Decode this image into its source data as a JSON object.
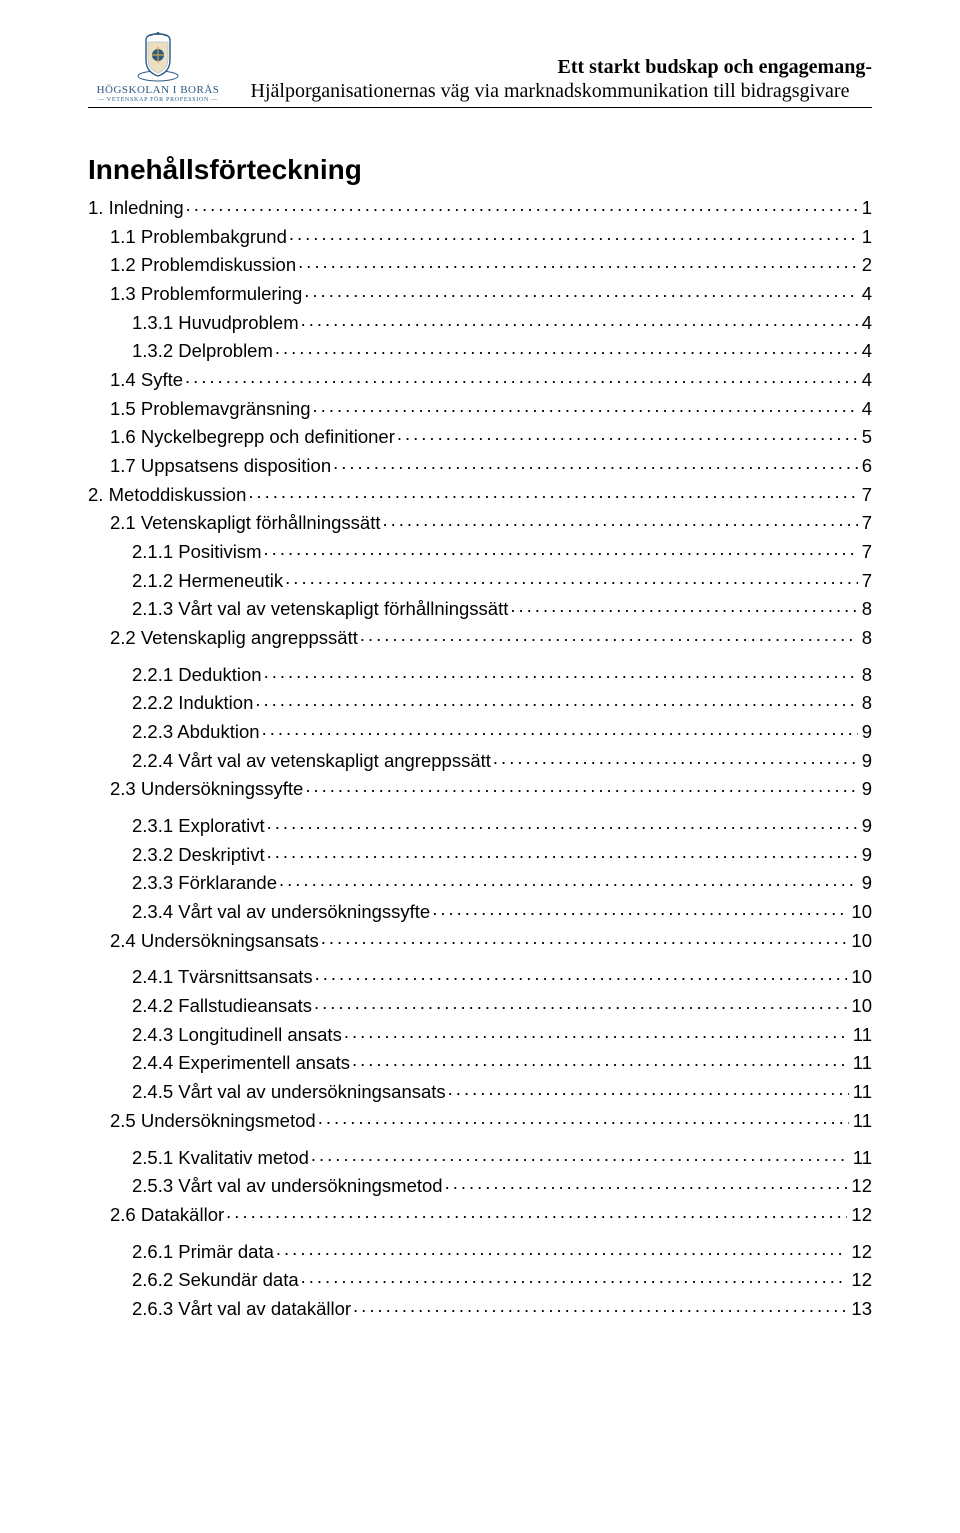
{
  "header": {
    "university_name": "HÖGSKOLAN I BORÅS",
    "university_subtitle": "— VETENSKAP FÖR PROFESSION —",
    "line1": "Ett starkt budskap och engagemang-",
    "line2": "Hjälporganisationernas väg via marknadskommunikation till bidragsgivare"
  },
  "toc_title": "Innehållsförteckning",
  "toc": [
    {
      "level": 1,
      "label": "1. Inledning",
      "page": "1",
      "space": false
    },
    {
      "level": 2,
      "label": "1.1 Problembakgrund",
      "page": "1",
      "space": false
    },
    {
      "level": 2,
      "label": "1.2 Problemdiskussion",
      "page": "2",
      "space": false
    },
    {
      "level": 2,
      "label": "1.3 Problemformulering",
      "page": "4",
      "space": false
    },
    {
      "level": 3,
      "label": "1.3.1 Huvudproblem",
      "page": "4",
      "space": false
    },
    {
      "level": 3,
      "label": "1.3.2 Delproblem",
      "page": "4",
      "space": false
    },
    {
      "level": 2,
      "label": "1.4 Syfte",
      "page": "4",
      "space": false
    },
    {
      "level": 2,
      "label": "1.5 Problemavgränsning",
      "page": "4",
      "space": false
    },
    {
      "level": 2,
      "label": "1.6 Nyckelbegrepp och definitioner",
      "page": "5",
      "space": false
    },
    {
      "level": 2,
      "label": "1.7 Uppsatsens disposition",
      "page": "6",
      "space": false
    },
    {
      "level": 1,
      "label": "2. Metoddiskussion",
      "page": "7",
      "space": false
    },
    {
      "level": 2,
      "label": "2.1 Vetenskapligt förhållningssätt",
      "page": "7",
      "space": false
    },
    {
      "level": 3,
      "label": "2.1.1 Positivism",
      "page": "7",
      "space": false
    },
    {
      "level": 3,
      "label": "2.1.2 Hermeneutik",
      "page": "7",
      "space": false
    },
    {
      "level": 3,
      "label": "2.1.3 Vårt val av vetenskapligt förhållningssätt",
      "page": "8",
      "space": false
    },
    {
      "level": 2,
      "label": "2.2 Vetenskaplig angreppssätt",
      "page": "8",
      "space": false
    },
    {
      "level": 3,
      "label": "2.2.1 Deduktion",
      "page": "8",
      "space": true
    },
    {
      "level": 3,
      "label": "2.2.2 Induktion",
      "page": "8",
      "space": false
    },
    {
      "level": 3,
      "label": "2.2.3 Abduktion",
      "page": "9",
      "space": false
    },
    {
      "level": 3,
      "label": "2.2.4  Vårt val av vetenskapligt angreppssätt",
      "page": "9",
      "space": false
    },
    {
      "level": 2,
      "label": "2.3 Undersökningssyfte",
      "page": "9",
      "space": false
    },
    {
      "level": 3,
      "label": "2.3.1 Explorativt",
      "page": "9",
      "space": true
    },
    {
      "level": 3,
      "label": "2.3.2 Deskriptivt",
      "page": "9",
      "space": false
    },
    {
      "level": 3,
      "label": "2.3.3 Förklarande",
      "page": "9",
      "space": false
    },
    {
      "level": 3,
      "label": "2.3.4 Vårt val av undersökningssyfte",
      "page": "10",
      "space": false
    },
    {
      "level": 2,
      "label": "2.4 Undersökningsansats",
      "page": "10",
      "space": false
    },
    {
      "level": 3,
      "label": "2.4.1 Tvärsnittsansats",
      "page": "10",
      "space": true
    },
    {
      "level": 3,
      "label": "2.4.2 Fallstudieansats",
      "page": "10",
      "space": false
    },
    {
      "level": 3,
      "label": "2.4.3 Longitudinell ansats",
      "page": "11",
      "space": false
    },
    {
      "level": 3,
      "label": "2.4.4 Experimentell ansats",
      "page": "11",
      "space": false
    },
    {
      "level": 3,
      "label": "2.4.5 Vårt val av undersökningsansats",
      "page": "11",
      "space": false
    },
    {
      "level": 2,
      "label": "2.5 Undersökningsmetod",
      "page": "11",
      "space": false
    },
    {
      "level": 3,
      "label": "2.5.1 Kvalitativ metod",
      "page": "11",
      "space": true
    },
    {
      "level": 3,
      "label": "2.5.3 Vårt val av undersökningsmetod",
      "page": "12",
      "space": false
    },
    {
      "level": 2,
      "label": "2.6 Datakällor",
      "page": "12",
      "space": false
    },
    {
      "level": 3,
      "label": "2.6.1 Primär data",
      "page": "12",
      "space": true
    },
    {
      "level": 3,
      "label": "2.6.2 Sekundär data",
      "page": "12",
      "space": false
    },
    {
      "level": 3,
      "label": "2.6.3 Vårt val av datakällor",
      "page": "13",
      "space": false
    }
  ],
  "colors": {
    "crest_blue": "#2a5a84",
    "crest_gold": "#c9a24a",
    "text": "#000000",
    "background": "#ffffff"
  }
}
